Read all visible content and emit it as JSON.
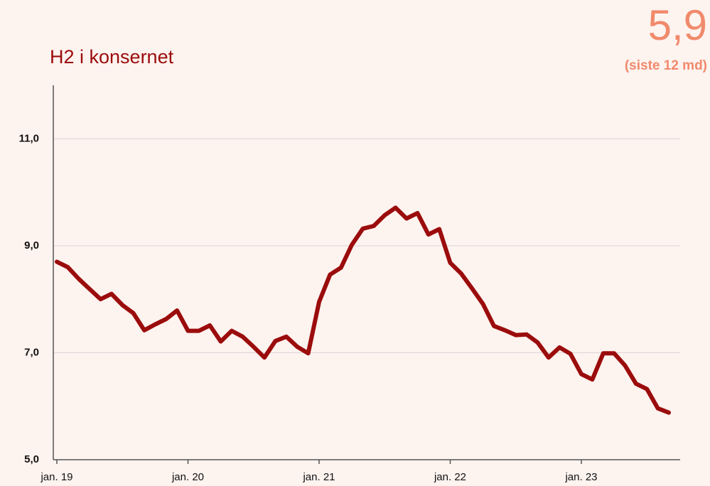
{
  "chart_data": {
    "type": "line",
    "title": "H2 i konsernet",
    "annotations": [
      "5,9",
      "(siste 12 md)"
    ],
    "categories": [
      "jan. 19",
      null,
      null,
      null,
      null,
      null,
      null,
      null,
      null,
      null,
      null,
      null,
      "jan. 20",
      null,
      null,
      null,
      null,
      null,
      null,
      null,
      null,
      null,
      null,
      null,
      "jan. 21",
      null,
      null,
      null,
      null,
      null,
      null,
      null,
      null,
      null,
      null,
      null,
      "jan. 22",
      null,
      null,
      null,
      null,
      null,
      null,
      null,
      null,
      null,
      null,
      null,
      "jan. 23",
      null,
      null,
      null,
      null,
      null,
      null,
      null,
      null
    ],
    "values": [
      8.7,
      8.6,
      8.38,
      8.19,
      8.0,
      8.1,
      7.89,
      7.74,
      7.42,
      7.53,
      7.63,
      7.79,
      7.41,
      7.41,
      7.51,
      7.21,
      7.41,
      7.3,
      7.11,
      6.91,
      7.22,
      7.3,
      7.11,
      6.99,
      7.95,
      8.46,
      8.59,
      9.02,
      9.32,
      9.37,
      9.57,
      9.71,
      9.51,
      9.61,
      9.21,
      9.31,
      8.68,
      8.48,
      8.2,
      7.91,
      7.5,
      7.42,
      7.33,
      7.34,
      7.19,
      6.91,
      7.1,
      6.98,
      6.6,
      6.5,
      6.99,
      6.99,
      6.76,
      6.42,
      6.32,
      5.96,
      5.88
    ],
    "color": "#9b0c0c",
    "ylim": [
      5,
      12
    ],
    "yticks": [
      {
        "value": 5,
        "label": "5,0"
      },
      {
        "value": 7,
        "label": "7,0"
      },
      {
        "value": 9,
        "label": "9,0"
      },
      {
        "value": 11,
        "label": "11,0"
      }
    ],
    "grid": true
  }
}
